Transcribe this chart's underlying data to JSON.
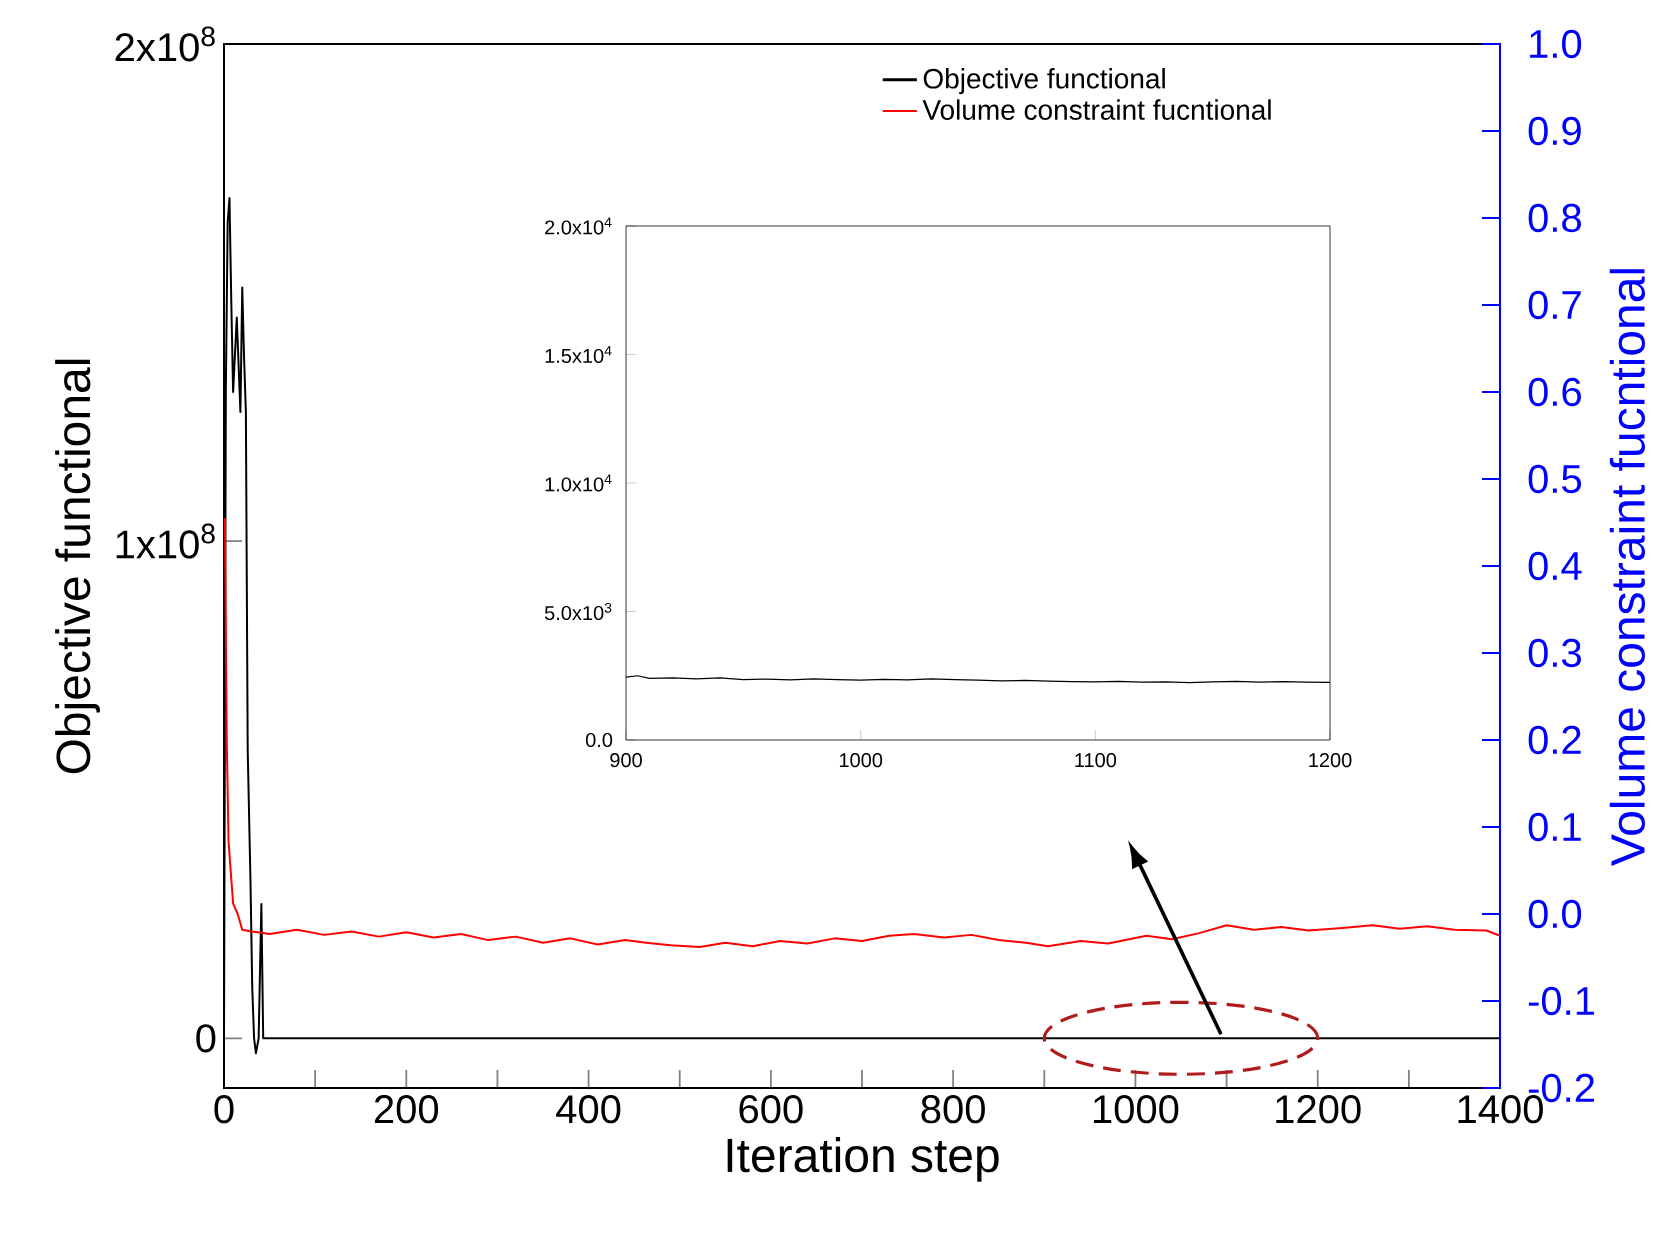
{
  "chart_data": [
    {
      "type": "line",
      "xlabel": "Iteration step",
      "ylabel": "Objective functional",
      "y2label": "Volume constraint fucntional",
      "xlim": [
        0,
        1400
      ],
      "ylim": [
        -10000000,
        200000000
      ],
      "y2lim": [
        -0.2,
        1.0
      ],
      "xticks": [
        0,
        200,
        400,
        600,
        800,
        1000,
        1200,
        1400,
        {
          "value": 100,
          "label": null
        },
        {
          "value": 300,
          "label": null
        },
        {
          "value": 500,
          "label": null
        },
        {
          "value": 700,
          "label": null
        },
        {
          "value": 900,
          "label": null
        },
        {
          "value": 1100,
          "label": null
        },
        {
          "value": 1300,
          "label": null
        }
      ],
      "yticks": [
        0,
        {
          "value": 100000000,
          "label": "1x10$^{8}$"
        },
        {
          "value": 200000000,
          "label": "2x10$^{8}$"
        }
      ],
      "y2ticks": [
        {
          "value": -0.2,
          "label": "-0.2"
        },
        {
          "value": -0.1,
          "label": "-0.1"
        },
        {
          "value": 0,
          "label": "0.0"
        },
        0.1,
        0.2,
        0.3,
        0.4,
        0.5,
        0.6,
        0.7,
        0.8,
        0.9,
        {
          "value": 1.0,
          "label": "1.0"
        }
      ],
      "legend": "top",
      "grid": false,
      "series": [
        {
          "name": "Objective functional",
          "color": "#000000",
          "x": [
            0,
            2,
            4,
            6,
            8,
            10,
            14,
            18,
            20,
            22,
            24,
            26,
            29,
            31,
            33,
            35,
            38,
            41,
            43,
            45,
            50,
            1400
          ],
          "values": [
            0,
            130000000,
            164000000,
            169000000,
            148000000,
            130000000,
            145000000,
            126000000,
            151000000,
            137000000,
            126000000,
            58000000,
            32000000,
            10000000,
            0,
            -3000000,
            0,
            27000000,
            0,
            0,
            0,
            0
          ]
        },
        {
          "name": "Volume constraint fucntional",
          "color": "#ff0000",
          "axis": "y2",
          "x": [
            1,
            3,
            5,
            8,
            10,
            15,
            20,
            30,
            50,
            80,
            110,
            140,
            170,
            200,
            230,
            260,
            290,
            320,
            350,
            380,
            410,
            440,
            463,
            490,
            522,
            550,
            580,
            610,
            640,
            670,
            700,
            730,
            757,
            790,
            820,
            850,
            880,
            904,
            940,
            970,
            1012,
            1040,
            1070,
            1100,
            1130,
            1160,
            1190,
            1227,
            1260,
            1290,
            1320,
            1350,
            1385,
            1400
          ],
          "values": [
            0.455,
            0.2,
            0.083,
            0.04,
            0.012,
            0.0,
            -0.018,
            -0.02,
            -0.023,
            -0.018,
            -0.024,
            -0.02,
            -0.026,
            -0.021,
            -0.027,
            -0.023,
            -0.03,
            -0.026,
            -0.033,
            -0.028,
            -0.035,
            -0.03,
            -0.033,
            -0.036,
            -0.038,
            -0.033,
            -0.037,
            -0.031,
            -0.034,
            -0.028,
            -0.031,
            -0.025,
            -0.023,
            -0.027,
            -0.024,
            -0.03,
            -0.033,
            -0.037,
            -0.031,
            -0.034,
            -0.025,
            -0.029,
            -0.022,
            -0.013,
            -0.018,
            -0.015,
            -0.019,
            -0.016,
            -0.013,
            -0.017,
            -0.014,
            -0.018,
            -0.019,
            -0.025
          ]
        }
      ]
    },
    {
      "type": "line",
      "xlim": [
        900,
        1200
      ],
      "ylim": [
        0,
        20000
      ],
      "xticks": [
        900,
        1000,
        1100,
        1200
      ],
      "yticks": [
        {
          "value": 0,
          "label": "0.0"
        },
        {
          "value": 5000,
          "label": "5.0x10$^{3}$"
        },
        {
          "value": 10000,
          "label": "1.0x10$^{4}$"
        },
        {
          "value": 15000,
          "label": "1.5x10$^{4}$"
        },
        {
          "value": 20000,
          "label": "2.0x10$^{4}$"
        }
      ],
      "series": [
        {
          "color": "#000000",
          "x": [
            900,
            905,
            910,
            920,
            930,
            940,
            950,
            960,
            970,
            980,
            990,
            1000,
            1010,
            1020,
            1030,
            1040,
            1050,
            1060,
            1070,
            1080,
            1090,
            1100,
            1110,
            1120,
            1130,
            1140,
            1150,
            1160,
            1170,
            1180,
            1190,
            1200
          ],
          "values": [
            2450,
            2500,
            2400,
            2420,
            2380,
            2420,
            2350,
            2370,
            2340,
            2380,
            2350,
            2330,
            2360,
            2340,
            2380,
            2350,
            2330,
            2300,
            2320,
            2290,
            2270,
            2260,
            2280,
            2250,
            2260,
            2230,
            2260,
            2280,
            2250,
            2270,
            2250,
            2240
          ]
        }
      ]
    }
  ]
}
